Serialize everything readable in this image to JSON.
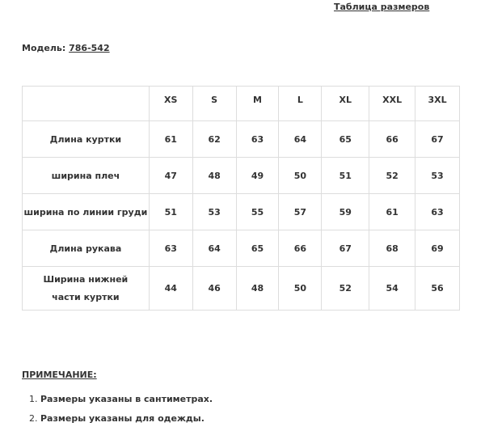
{
  "header": {
    "title": "Таблица размеров"
  },
  "model": {
    "label": "Модель:",
    "value": "786-542"
  },
  "size_table": {
    "columns": [
      "",
      "XS",
      "S",
      "M",
      "L",
      "XL",
      "XXL",
      "3XL"
    ],
    "rows": [
      {
        "label": "Длина куртки",
        "values": [
          "61",
          "62",
          "63",
          "64",
          "65",
          "66",
          "67"
        ]
      },
      {
        "label": "ширина плеч",
        "values": [
          "47",
          "48",
          "49",
          "50",
          "51",
          "52",
          "53"
        ]
      },
      {
        "label": "ширина по линии груди",
        "values": [
          "51",
          "53",
          "55",
          "57",
          "59",
          "61",
          "63"
        ]
      },
      {
        "label": "Длина рукава",
        "values": [
          "63",
          "64",
          "65",
          "66",
          "67",
          "68",
          "69"
        ]
      },
      {
        "label": "Ширина нижней части куртки",
        "values": [
          "44",
          "46",
          "48",
          "50",
          "52",
          "54",
          "56"
        ]
      }
    ]
  },
  "notes": {
    "heading": "ПРИМЕЧАНИЕ:",
    "items": [
      "Размеры указаны в сантиметрах.",
      "Размеры указаны для одежды."
    ]
  }
}
